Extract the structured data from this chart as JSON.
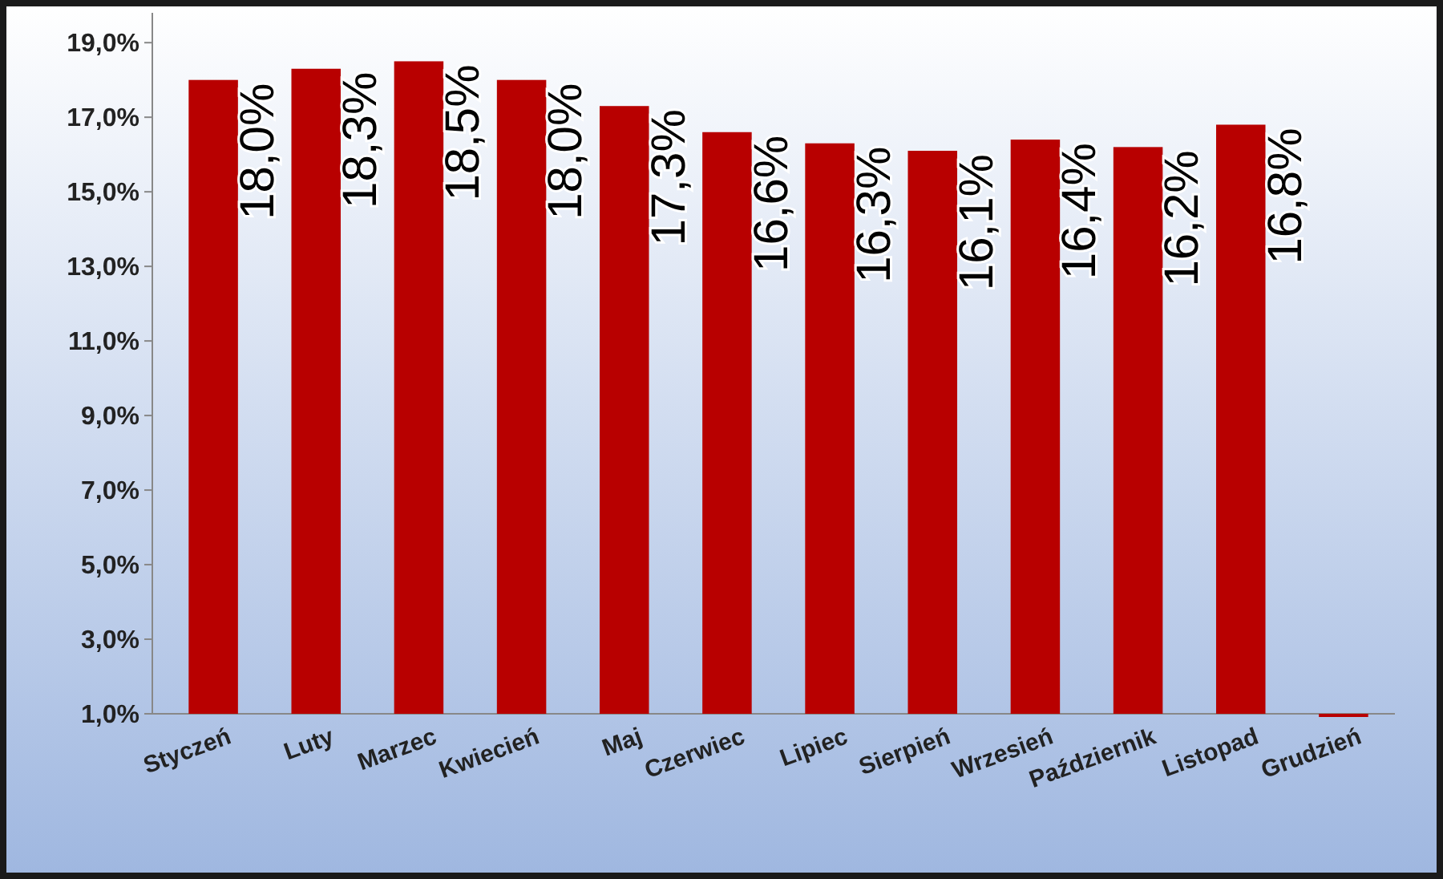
{
  "chart_data": {
    "type": "bar",
    "categories": [
      "Styczeń",
      "Luty",
      "Marzec",
      "Kwiecień",
      "Maj",
      "Czerwiec",
      "Lipiec",
      "Sierpień",
      "Wrzesień",
      "Październik",
      "Listopad",
      "Grudzień"
    ],
    "values": [
      18.0,
      18.3,
      18.5,
      18.0,
      17.3,
      16.6,
      16.3,
      16.1,
      16.4,
      16.2,
      16.8,
      1.0
    ],
    "value_labels": [
      "18,0%",
      "18,3%",
      "18,5%",
      "18,0%",
      "17,3%",
      "16,6%",
      "16,3%",
      "16,1%",
      "16,4%",
      "16,2%",
      "16,8%",
      null
    ],
    "color": "#b80000",
    "ylim": [
      1,
      19.8
    ],
    "yticks": [
      {
        "value": 1,
        "label": "1,0%"
      },
      {
        "value": 3,
        "label": "3,0%"
      },
      {
        "value": 5,
        "label": "5,0%"
      },
      {
        "value": 7,
        "label": "7,0%"
      },
      {
        "value": 9,
        "label": "9,0%"
      },
      {
        "value": 11,
        "label": "11,0%"
      },
      {
        "value": 13,
        "label": "13,0%"
      },
      {
        "value": 15,
        "label": "15,0%"
      },
      {
        "value": 17,
        "label": "17,0%"
      },
      {
        "value": 19,
        "label": "19,0%"
      }
    ],
    "grid": false
  }
}
